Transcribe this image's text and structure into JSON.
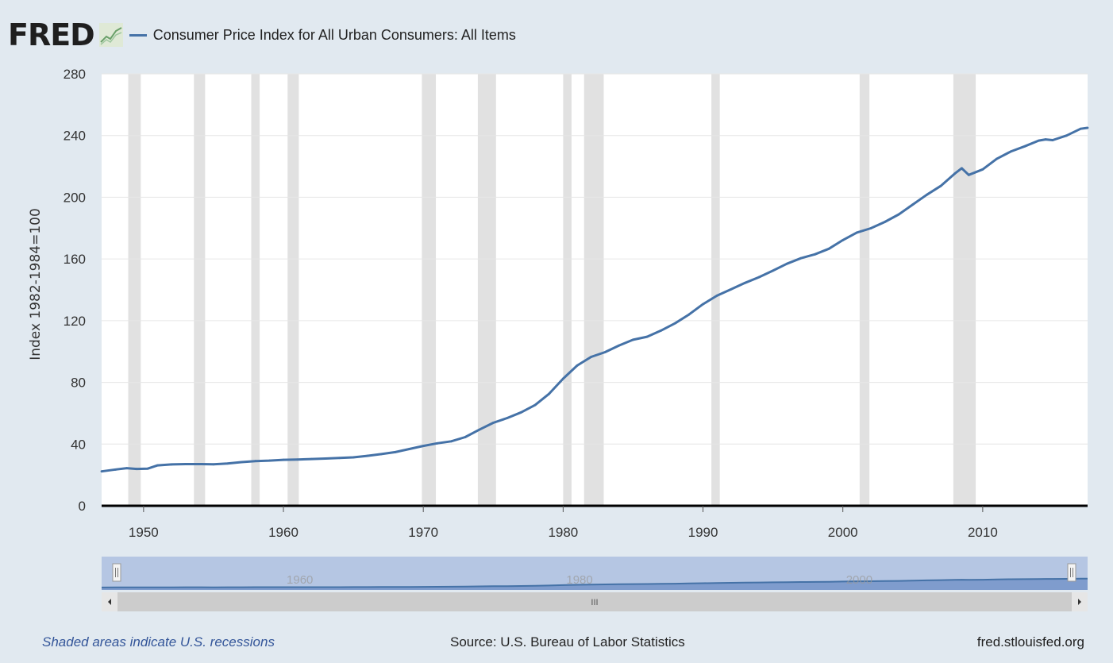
{
  "header": {
    "logo_text": "FRED",
    "logo_icon": "line-chart-icon",
    "series_label": "Consumer Price Index for All Urban Consumers: All Items"
  },
  "colors": {
    "background": "#e1e9f0",
    "plot_bg": "#ffffff",
    "line": "#4572a7",
    "recession": "#e1e1e1",
    "navigator_fill": "#b5c6e3",
    "navigator_area": "#7f9ccd",
    "link": "#335599"
  },
  "chart_data": {
    "type": "line",
    "title": "",
    "xlabel": "",
    "ylabel": "Index 1982-1984=100",
    "xlim": [
      1947.0,
      2017.5
    ],
    "ylim": [
      0,
      280
    ],
    "yticks": [
      0,
      40,
      80,
      120,
      160,
      200,
      240,
      280
    ],
    "xticks": [
      1950,
      1960,
      1970,
      1980,
      1990,
      2000,
      2010
    ],
    "grid": true,
    "legend": "top-left",
    "recessions": [
      [
        1948.9,
        1949.8
      ],
      [
        1953.6,
        1954.4
      ],
      [
        1957.7,
        1958.3
      ],
      [
        1960.3,
        1961.1
      ],
      [
        1969.9,
        1970.9
      ],
      [
        1973.9,
        1975.2
      ],
      [
        1980.0,
        1980.6
      ],
      [
        1981.5,
        1982.9
      ],
      [
        1990.6,
        1991.2
      ],
      [
        2001.2,
        2001.9
      ],
      [
        2007.9,
        2009.5
      ]
    ],
    "series": [
      {
        "name": "Consumer Price Index for All Urban Consumers: All Items",
        "x": [
          1947.0,
          1948.0,
          1948.8,
          1949.5,
          1950.3,
          1951.0,
          1952.0,
          1953.0,
          1954.0,
          1955.0,
          1956.0,
          1957.0,
          1958.0,
          1959.0,
          1960.0,
          1961.0,
          1962.0,
          1963.0,
          1964.0,
          1965.0,
          1966.0,
          1967.0,
          1968.0,
          1969.0,
          1970.0,
          1971.0,
          1972.0,
          1973.0,
          1974.0,
          1975.0,
          1976.0,
          1977.0,
          1978.0,
          1979.0,
          1980.0,
          1981.0,
          1982.0,
          1983.0,
          1984.0,
          1985.0,
          1986.0,
          1987.0,
          1988.0,
          1989.0,
          1990.0,
          1991.0,
          1992.0,
          1993.0,
          1994.0,
          1995.0,
          1996.0,
          1997.0,
          1998.0,
          1999.0,
          2000.0,
          2001.0,
          2002.0,
          2003.0,
          2004.0,
          2005.0,
          2006.0,
          2007.0,
          2008.0,
          2008.5,
          2009.0,
          2010.0,
          2011.0,
          2012.0,
          2013.0,
          2014.0,
          2014.5,
          2015.0,
          2016.0,
          2017.0,
          2017.5
        ],
        "values": [
          22.3,
          23.5,
          24.4,
          23.9,
          24.1,
          26.2,
          26.8,
          27.0,
          27.0,
          26.9,
          27.4,
          28.3,
          29.0,
          29.3,
          29.8,
          30.0,
          30.3,
          30.6,
          31.0,
          31.4,
          32.4,
          33.5,
          34.8,
          36.8,
          38.8,
          40.5,
          41.8,
          44.5,
          49.3,
          53.8,
          56.9,
          60.6,
          65.3,
          72.6,
          82.4,
          90.9,
          96.5,
          99.6,
          103.9,
          107.6,
          109.6,
          113.6,
          118.3,
          124.0,
          130.7,
          136.2,
          140.3,
          144.5,
          148.2,
          152.4,
          156.9,
          160.5,
          163.0,
          166.6,
          172.2,
          177.1,
          179.9,
          184.0,
          188.9,
          195.3,
          201.6,
          207.3,
          215.3,
          218.8,
          214.5,
          218.1,
          224.9,
          229.6,
          233.0,
          236.7,
          237.5,
          237.0,
          240.0,
          244.4,
          245.0
        ]
      }
    ],
    "navigator": {
      "ticks": [
        "1960",
        "1980",
        "2000"
      ],
      "scroll_grip": "III"
    }
  },
  "footer": {
    "recession_note": "Shaded areas indicate U.S. recessions",
    "source": "Source: U.S. Bureau of Labor Statistics",
    "site": "fred.stlouisfed.org"
  }
}
